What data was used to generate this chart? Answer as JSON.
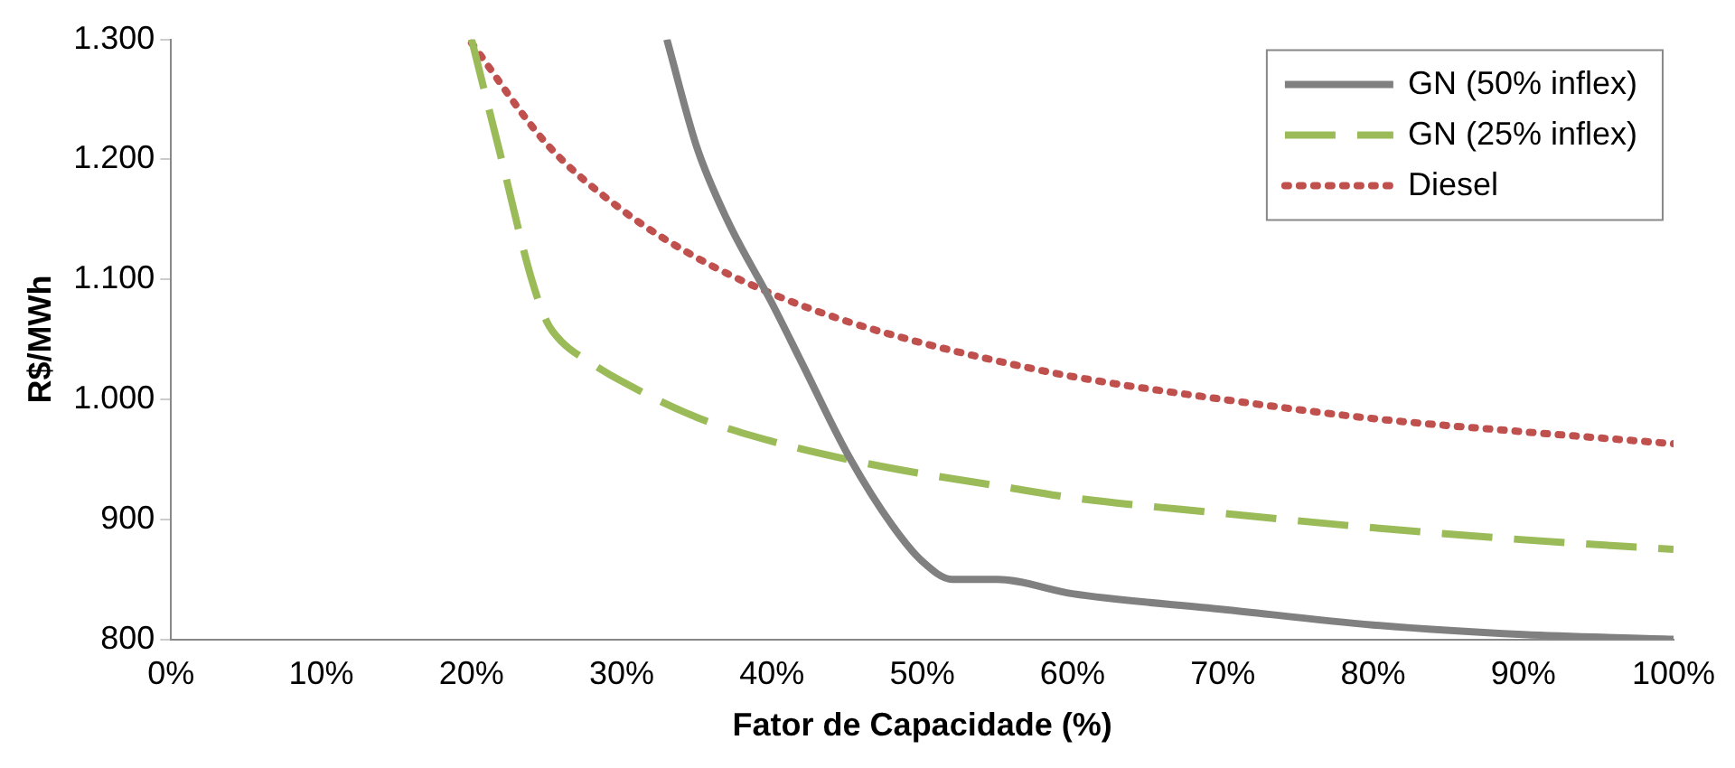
{
  "chart_data": {
    "type": "line",
    "xlabel": "Fator de Capacidade (%)",
    "ylabel": "R$/MWh",
    "xlim": [
      0,
      100
    ],
    "xticks": [
      {
        "value": 0,
        "label": "0%"
      },
      {
        "value": 10,
        "label": "10%"
      },
      {
        "value": 20,
        "label": "20%"
      },
      {
        "value": 30,
        "label": "30%"
      },
      {
        "value": 40,
        "label": "40%"
      },
      {
        "value": 50,
        "label": "50%"
      },
      {
        "value": 60,
        "label": "60%"
      },
      {
        "value": 70,
        "label": "70%"
      },
      {
        "value": 80,
        "label": "80%"
      },
      {
        "value": 90,
        "label": "90%"
      },
      {
        "value": 100,
        "label": "100%"
      }
    ],
    "ylim": [
      800,
      1300
    ],
    "yticks": [
      {
        "value": 800,
        "label": "800"
      },
      {
        "value": 900,
        "label": "900"
      },
      {
        "value": 1000,
        "label": "1.000"
      },
      {
        "value": 1100,
        "label": "1.100"
      },
      {
        "value": 1200,
        "label": "1.200"
      },
      {
        "value": 1300,
        "label": "1.300"
      }
    ],
    "grid": false,
    "legend": "top right",
    "marker": "none",
    "series": [
      {
        "name": "GN (50% inflex)",
        "color": "#808080",
        "line_style": "solid",
        "x": [
          33,
          35,
          37,
          40,
          42,
          45,
          48,
          50,
          52,
          55,
          60,
          70,
          80,
          90,
          100
        ],
        "values": [
          1300,
          1210,
          1150,
          1080,
          1030,
          955,
          895,
          865,
          850,
          850,
          838,
          825,
          812,
          804,
          800
        ]
      },
      {
        "name": "GN (25% inflex)",
        "color": "#9bbb59",
        "line_style": "dashed",
        "x": [
          20,
          22,
          24,
          25,
          26,
          28,
          30,
          35,
          40,
          45,
          50,
          55,
          60,
          70,
          80,
          90,
          100
        ],
        "values": [
          1300,
          1200,
          1100,
          1065,
          1048,
          1030,
          1015,
          985,
          965,
          950,
          938,
          928,
          918,
          905,
          893,
          883,
          875
        ]
      },
      {
        "name": "Diesel",
        "color": "#c0504d",
        "line_style": "dotted",
        "x": [
          20,
          25,
          30,
          35,
          40,
          45,
          50,
          55,
          60,
          70,
          80,
          90,
          100
        ],
        "values": [
          1297,
          1213,
          1158,
          1118,
          1088,
          1065,
          1047,
          1032,
          1019,
          1000,
          984,
          973,
          963
        ]
      }
    ]
  }
}
